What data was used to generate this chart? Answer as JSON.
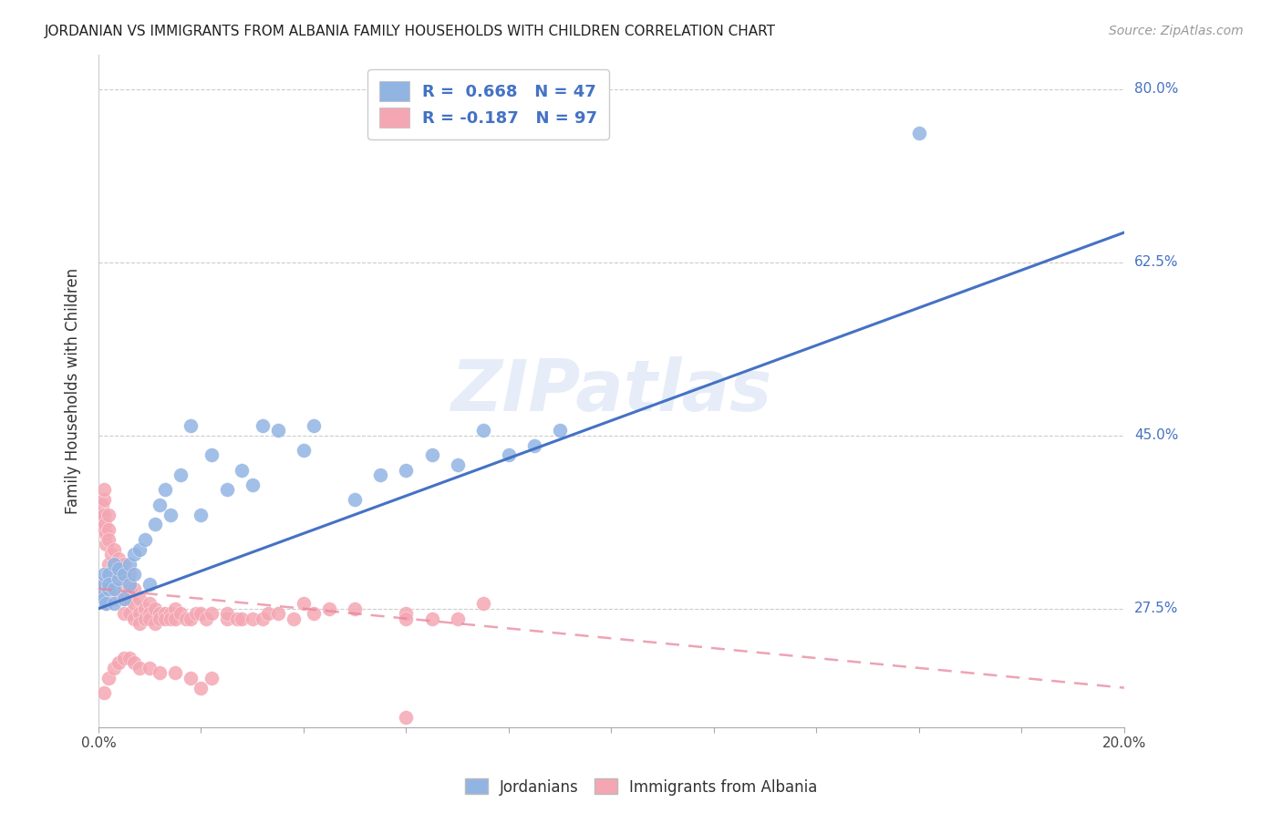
{
  "title": "JORDANIAN VS IMMIGRANTS FROM ALBANIA FAMILY HOUSEHOLDS WITH CHILDREN CORRELATION CHART",
  "source": "Source: ZipAtlas.com",
  "ylabel": "Family Households with Children",
  "x_min": 0.0,
  "x_max": 0.2,
  "y_min": 0.155,
  "y_max": 0.835,
  "y_tick_vals": [
    0.8,
    0.625,
    0.45,
    0.275
  ],
  "y_tick_labels": [
    "80.0%",
    "62.5%",
    "45.0%",
    "27.5%"
  ],
  "watermark": "ZIPatlas",
  "blue_color": "#92b4e3",
  "pink_color": "#f4a7b3",
  "line_blue": "#4472c4",
  "line_pink": "#e8849a",
  "blue_R": 0.668,
  "blue_N": 47,
  "pink_R": -0.187,
  "pink_N": 97,
  "blue_line_x0": 0.0,
  "blue_line_y0": 0.275,
  "blue_line_x1": 0.2,
  "blue_line_y1": 0.655,
  "pink_line_x0": 0.0,
  "pink_line_y0": 0.295,
  "pink_line_x1": 0.2,
  "pink_line_y1": 0.195,
  "blue_x": [
    0.0005,
    0.001,
    0.001,
    0.001,
    0.0015,
    0.002,
    0.002,
    0.002,
    0.003,
    0.003,
    0.003,
    0.004,
    0.004,
    0.005,
    0.005,
    0.006,
    0.006,
    0.007,
    0.007,
    0.008,
    0.009,
    0.01,
    0.011,
    0.012,
    0.013,
    0.014,
    0.016,
    0.018,
    0.02,
    0.022,
    0.025,
    0.028,
    0.03,
    0.032,
    0.035,
    0.04,
    0.042,
    0.05,
    0.055,
    0.06,
    0.065,
    0.07,
    0.075,
    0.08,
    0.085,
    0.09,
    0.16
  ],
  "blue_y": [
    0.29,
    0.3,
    0.285,
    0.31,
    0.28,
    0.295,
    0.31,
    0.3,
    0.295,
    0.32,
    0.28,
    0.305,
    0.315,
    0.31,
    0.285,
    0.32,
    0.3,
    0.33,
    0.31,
    0.335,
    0.345,
    0.3,
    0.36,
    0.38,
    0.395,
    0.37,
    0.41,
    0.46,
    0.37,
    0.43,
    0.395,
    0.415,
    0.4,
    0.46,
    0.455,
    0.435,
    0.46,
    0.385,
    0.41,
    0.415,
    0.43,
    0.42,
    0.455,
    0.43,
    0.44,
    0.455,
    0.755
  ],
  "pink_x": [
    0.0002,
    0.0004,
    0.0005,
    0.0006,
    0.0008,
    0.001,
    0.001,
    0.001,
    0.001,
    0.0012,
    0.0014,
    0.0015,
    0.0015,
    0.002,
    0.002,
    0.002,
    0.002,
    0.002,
    0.0025,
    0.003,
    0.003,
    0.003,
    0.003,
    0.0035,
    0.004,
    0.004,
    0.004,
    0.005,
    0.005,
    0.005,
    0.005,
    0.005,
    0.006,
    0.006,
    0.006,
    0.006,
    0.007,
    0.007,
    0.007,
    0.008,
    0.008,
    0.008,
    0.009,
    0.009,
    0.01,
    0.01,
    0.01,
    0.011,
    0.011,
    0.012,
    0.012,
    0.013,
    0.013,
    0.014,
    0.014,
    0.015,
    0.015,
    0.016,
    0.017,
    0.018,
    0.019,
    0.02,
    0.021,
    0.022,
    0.025,
    0.025,
    0.027,
    0.028,
    0.03,
    0.032,
    0.033,
    0.035,
    0.038,
    0.04,
    0.042,
    0.045,
    0.05,
    0.06,
    0.06,
    0.065,
    0.07,
    0.075,
    0.001,
    0.002,
    0.003,
    0.004,
    0.005,
    0.006,
    0.007,
    0.008,
    0.01,
    0.012,
    0.015,
    0.018,
    0.06,
    0.02,
    0.022
  ],
  "pink_y": [
    0.3,
    0.295,
    0.36,
    0.37,
    0.38,
    0.355,
    0.37,
    0.385,
    0.395,
    0.36,
    0.34,
    0.35,
    0.28,
    0.355,
    0.37,
    0.345,
    0.32,
    0.295,
    0.33,
    0.335,
    0.32,
    0.3,
    0.285,
    0.315,
    0.325,
    0.31,
    0.29,
    0.32,
    0.305,
    0.295,
    0.285,
    0.27,
    0.31,
    0.295,
    0.285,
    0.27,
    0.295,
    0.28,
    0.265,
    0.285,
    0.27,
    0.26,
    0.275,
    0.265,
    0.28,
    0.27,
    0.265,
    0.275,
    0.26,
    0.27,
    0.265,
    0.27,
    0.265,
    0.27,
    0.265,
    0.275,
    0.265,
    0.27,
    0.265,
    0.265,
    0.27,
    0.27,
    0.265,
    0.27,
    0.265,
    0.27,
    0.265,
    0.265,
    0.265,
    0.265,
    0.27,
    0.27,
    0.265,
    0.28,
    0.27,
    0.275,
    0.275,
    0.27,
    0.265,
    0.265,
    0.265,
    0.28,
    0.19,
    0.205,
    0.215,
    0.22,
    0.225,
    0.225,
    0.22,
    0.215,
    0.215,
    0.21,
    0.21,
    0.205,
    0.165,
    0.195,
    0.205
  ]
}
